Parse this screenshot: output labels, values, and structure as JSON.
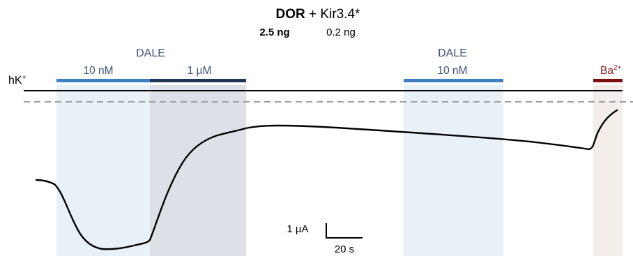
{
  "title": {
    "bold": "DOR",
    "rest": " + Kir3.4*"
  },
  "subtitle": {
    "bold": "2.5 ng",
    "rest": "0.2 ng"
  },
  "baseline_label": {
    "text": "hK",
    "sup": "+"
  },
  "applications": [
    {
      "drug": "DALE",
      "steps": [
        {
          "label": "10 nM",
          "color": "#3f7fc6"
        },
        {
          "label": "1 µM",
          "color": "#1f3656"
        }
      ]
    },
    {
      "drug": "DALE",
      "steps": [
        {
          "label": "10 nM",
          "color": "#3f7fc6"
        }
      ]
    },
    {
      "drug": "Ba",
      "sup": "2+",
      "color": "#7f1010"
    }
  ],
  "shading_colors": {
    "low_conc": "#e8f0f8",
    "high_conc": "#dde0e7",
    "barium": "#f3eeec"
  },
  "reference_line": {
    "style": "dashed",
    "color": "#a0a0a0"
  },
  "scale_bar": {
    "current": "1 µA",
    "time": "20 s"
  }
}
